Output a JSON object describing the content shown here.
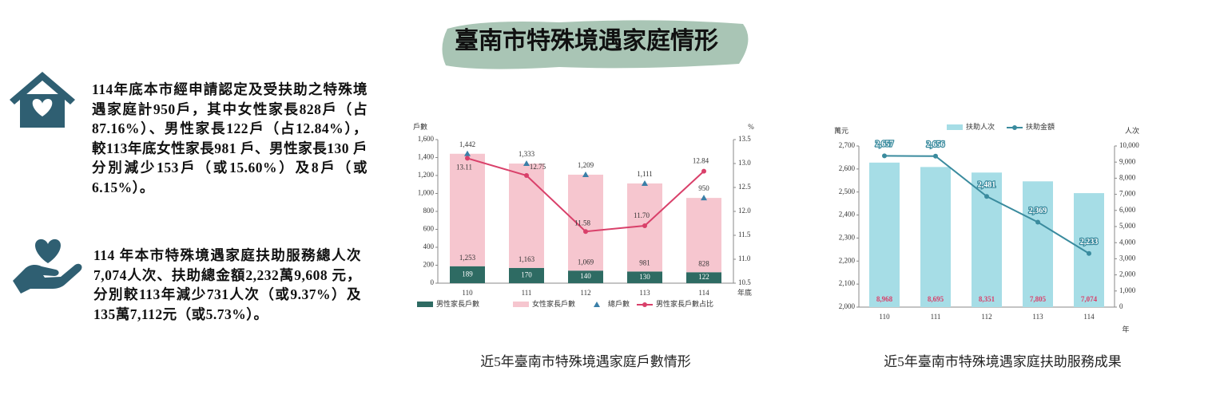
{
  "title": "臺南市特殊境遇家庭情形",
  "paragraphs": [
    "114年底本市經申請認定及受扶助之特殊境遇家庭計950戶，其中女性家長828戶（占87.16%）、男性家長122戶（占12.84%），較113年底女性家長981 戶、男性家長130 戶分別減少153戶（或15.60%）及8戶（或6.15%）。",
    "114 年本市特殊境遇家庭扶助服務總人次7,074人次、扶助總金額2,232萬9,608 元，分別較113年減少731人次（或9.37%）及135萬7,112元（或5.73%）。"
  ],
  "chart_data": [
    {
      "type": "combo",
      "caption": "近5年臺南市特殊境遇家庭戶數情形",
      "ylabel": "戶數",
      "y2label": "%",
      "xlabel": "年底",
      "categories": [
        "110",
        "111",
        "112",
        "113",
        "114"
      ],
      "ylim": [
        0,
        1600
      ],
      "yticks": [
        0,
        200,
        400,
        600,
        800,
        {
          "value": 1000,
          "label": "1,000"
        },
        {
          "value": 1200,
          "label": "1,200"
        },
        {
          "value": 1400,
          "label": "1,400"
        },
        {
          "value": 1600,
          "label": "1,600"
        }
      ],
      "y2lim": [
        10.5,
        13.5
      ],
      "y2ticks": [
        10.5,
        {
          "value": 11,
          "label": "11.0"
        },
        11.5,
        {
          "value": 12,
          "label": "12.0"
        },
        12.5,
        {
          "value": 13,
          "label": "13.0"
        },
        13.5
      ],
      "series": [
        {
          "name": "男性家長戶數",
          "type": "bar",
          "color": "#2e6b63",
          "values": [
            189,
            170,
            140,
            130,
            122
          ]
        },
        {
          "name": "女性家長戶數",
          "type": "bar",
          "color": "#f6c6cf",
          "values": [
            1253,
            1163,
            1069,
            981,
            828
          ],
          "value_labels": [
            "1,253",
            "1,163",
            "1,069",
            "981",
            "828"
          ]
        },
        {
          "name": "總戶數",
          "type": "scatter",
          "color": "#3a7fa8",
          "values": [
            1442,
            1333,
            1209,
            1111,
            950
          ],
          "value_labels": [
            "1,442",
            "1,333",
            "1,209",
            "1,111",
            "950"
          ]
        },
        {
          "name": "男性家長戶數占比",
          "type": "line",
          "axis": "y2",
          "color": "#d9406a",
          "values": [
            13.11,
            12.75,
            11.58,
            11.7,
            12.84
          ],
          "value_labels": [
            "13.11",
            "12.75",
            "11.58",
            "11.70",
            "12.84"
          ]
        }
      ]
    },
    {
      "type": "combo",
      "caption": "近5年臺南市特殊境遇家庭扶助服務成果",
      "ylabel": "萬元",
      "y2label": "人次",
      "xlabel": "年",
      "categories": [
        "110",
        "111",
        "112",
        "113",
        "114"
      ],
      "ylim": [
        2000,
        2700
      ],
      "yticks": [
        {
          "value": 2000,
          "label": "2,000"
        },
        {
          "value": 2100,
          "label": "2,100"
        },
        {
          "value": 2200,
          "label": "2,200"
        },
        {
          "value": 2300,
          "label": "2,300"
        },
        {
          "value": 2400,
          "label": "2,400"
        },
        {
          "value": 2500,
          "label": "2,500"
        },
        {
          "value": 2600,
          "label": "2,600"
        },
        {
          "value": 2700,
          "label": "2,700"
        }
      ],
      "y2lim": [
        0,
        10000
      ],
      "y2ticks": [
        0,
        {
          "value": 1000,
          "label": "1,000"
        },
        {
          "value": 2000,
          "label": "2,000"
        },
        {
          "value": 3000,
          "label": "3,000"
        },
        {
          "value": 4000,
          "label": "4,000"
        },
        {
          "value": 5000,
          "label": "5,000"
        },
        {
          "value": 6000,
          "label": "6,000"
        },
        {
          "value": 7000,
          "label": "7,000"
        },
        {
          "value": 8000,
          "label": "8,000"
        },
        {
          "value": 9000,
          "label": "9,000"
        },
        {
          "value": 10000,
          "label": "10,000"
        }
      ],
      "series": [
        {
          "name": "扶助人次",
          "type": "bar",
          "axis": "y2",
          "color": "#a6dde6",
          "values": [
            8968,
            8695,
            8351,
            7805,
            7074
          ],
          "value_labels": [
            "8,968",
            "8,695",
            "8,351",
            "7,805",
            "7,074"
          ]
        },
        {
          "name": "扶助金額",
          "type": "line",
          "color": "#3a8b9e",
          "values": [
            2657,
            2656,
            2481,
            2369,
            2233
          ],
          "value_labels": [
            "2,657",
            "2,656",
            "2,481",
            "2,369",
            "2,233"
          ]
        }
      ]
    }
  ]
}
